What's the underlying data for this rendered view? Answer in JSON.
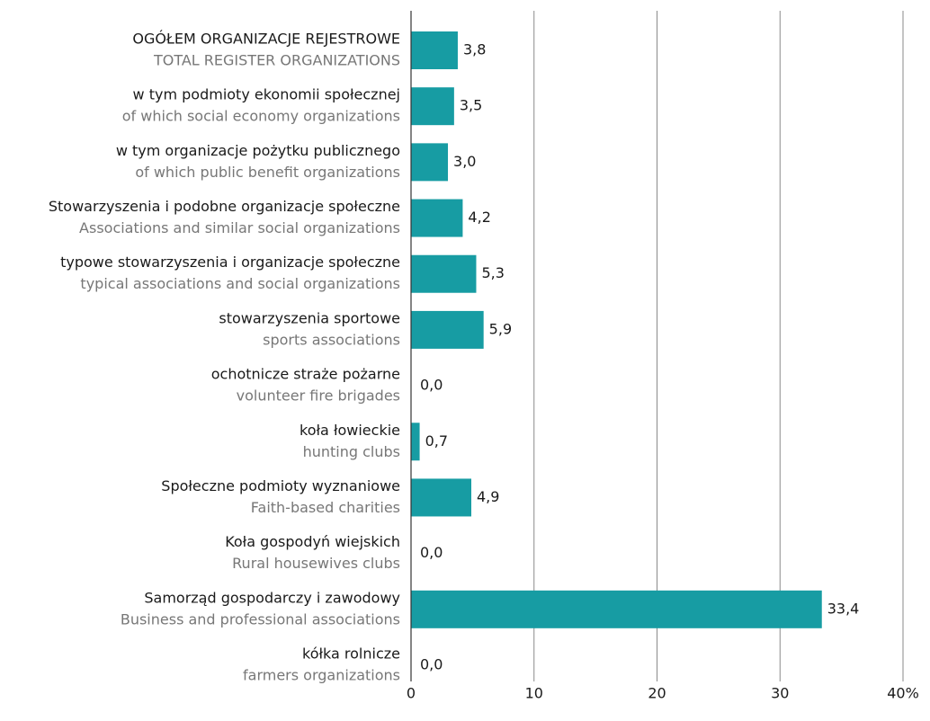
{
  "chart_data": {
    "type": "barh",
    "categories": [
      "OGÓŁEM ORGANIZACJE REJESTROWE",
      "w tym podmioty ekonomii społecznej",
      "w tym organizacje pożytku publicznego",
      "Stowarzyszenia i podobne organizacje społeczne",
      "typowe stowarzyszenia i  organizacje społeczne",
      "stowarzyszenia sportowe",
      "ochotnicze straże pożarne",
      "koła łowieckie",
      "Społeczne podmioty wyznaniowe",
      "Koła gospodyń wiejskich",
      "Samorząd gospodarczy i zawodowy",
      "kółka rolnicze"
    ],
    "categories_en": [
      "TOTAL REGISTER ORGANIZATIONS",
      "of which social economy organizations",
      "of which public benefit organizations",
      "Associations and similar social organizations",
      "typical associations and social organizations",
      "sports associations",
      "volunteer fire brigades",
      "hunting clubs",
      "Faith-based charities",
      "Rural housewives clubs",
      "Business and professional associations",
      "farmers organizations"
    ],
    "values": [
      3.8,
      3.5,
      3.0,
      4.2,
      5.3,
      5.9,
      0.0,
      0.7,
      4.9,
      0.0,
      33.4,
      0.0
    ],
    "value_labels": [
      "3,8",
      "3,5",
      "3,0",
      "4,2",
      "5,3",
      "5,9",
      "0,0",
      "0,7",
      "4,9",
      "0,0",
      "33,4",
      "0,0"
    ],
    "color": "#179ca3",
    "xlim": [
      0,
      40
    ],
    "xticks": [
      0,
      10,
      20,
      30,
      {
        "value": 40,
        "label": "40%"
      }
    ],
    "grid": true
  }
}
